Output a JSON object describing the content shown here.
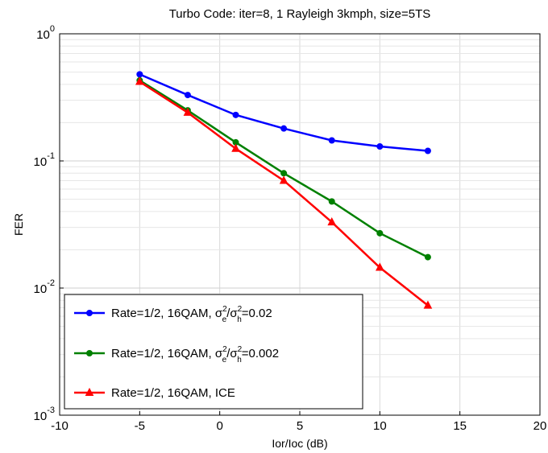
{
  "chart_data": {
    "type": "line",
    "title": "Turbo Code: iter=8, 1 Rayleigh 3kmph, size=5TS",
    "xlabel": "Ior/Ioc (dB)",
    "ylabel": "FER",
    "xlim": [
      -10,
      20
    ],
    "ylim": [
      0.001,
      1
    ],
    "yscale": "log",
    "grid": true,
    "legend_position": "bottom-left",
    "x_ticks": [
      "-10",
      "-5",
      "0",
      "5",
      "10",
      "15",
      "20"
    ],
    "y_ticks": [
      {
        "value": 0.001,
        "base": "10",
        "exp": "-3"
      },
      {
        "value": 0.01,
        "base": "10",
        "exp": "-2"
      },
      {
        "value": 0.1,
        "base": "10",
        "exp": "-1"
      },
      {
        "value": 1,
        "base": "10",
        "exp": "0"
      }
    ],
    "x": [
      -5,
      -2,
      1,
      4,
      7,
      10,
      13
    ],
    "series": [
      {
        "name": "Rate=1/2, 16QAM, σe2/σh2=0.02",
        "legend_prefix": "Rate=1/2, 16QAM, ",
        "legend_suffix": "=0.02",
        "color": "#0000ff",
        "marker": "circle",
        "values": [
          0.48,
          0.33,
          0.23,
          0.18,
          0.145,
          0.13,
          0.12
        ]
      },
      {
        "name": "Rate=1/2, 16QAM, σe2/σh2=0.002",
        "legend_prefix": "Rate=1/2, 16QAM, ",
        "legend_suffix": "=0.002",
        "color": "#008000",
        "marker": "circle",
        "values": [
          0.43,
          0.25,
          0.14,
          0.08,
          0.048,
          0.027,
          0.0175
        ]
      },
      {
        "name": "Rate=1/2, 16QAM, ICE",
        "legend_prefix": "Rate=1/2, 16QAM, ICE",
        "legend_suffix": "",
        "color": "#ff0000",
        "marker": "triangle",
        "values": [
          0.42,
          0.24,
          0.125,
          0.07,
          0.033,
          0.0145,
          0.0073
        ]
      }
    ]
  }
}
